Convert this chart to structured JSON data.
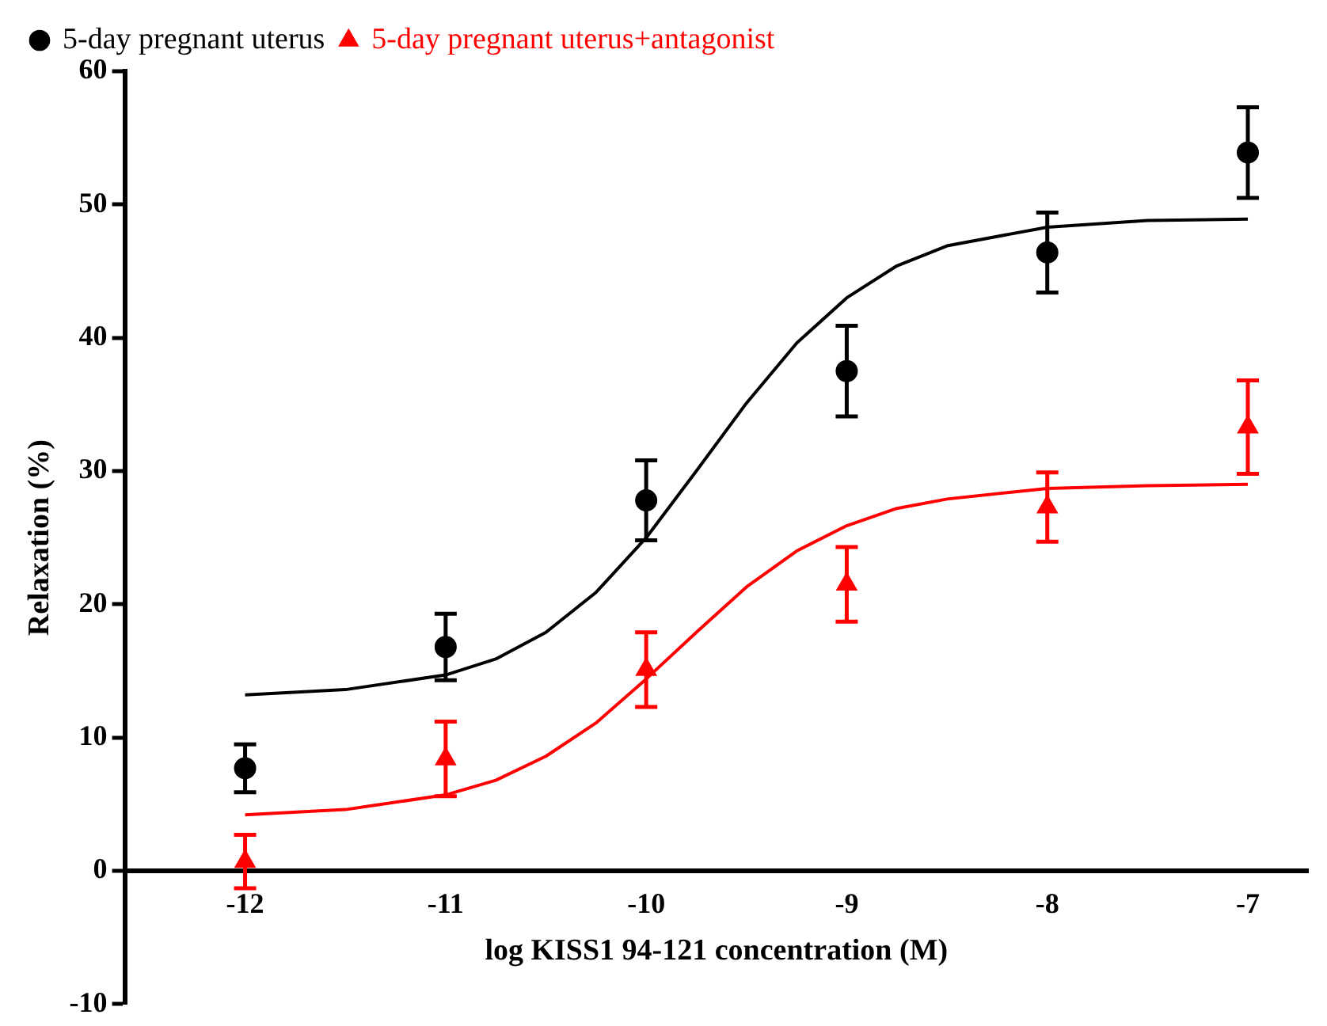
{
  "chart_data": {
    "type": "scatter",
    "xlabel": "log KISS1 94-121 concentration (M)",
    "ylabel": "Relaxation (%)",
    "x": [
      -12,
      -11,
      -10,
      -9,
      -8,
      -7
    ],
    "xlim": [
      -12.6,
      -6.7
    ],
    "xticks": [
      -12,
      -11,
      -10,
      -9,
      -8,
      -7
    ],
    "ylim": [
      -10,
      60
    ],
    "yticks": [
      -10,
      0,
      10,
      20,
      30,
      40,
      50,
      60
    ],
    "grid": false,
    "legend": "top left",
    "series": [
      {
        "name": "5-day pregnant uterus",
        "marker": "circle",
        "color": "#000000",
        "values": [
          7.7,
          16.8,
          27.8,
          37.5,
          46.4,
          53.9
        ],
        "errors": [
          1.8,
          2.5,
          3,
          3.4,
          3,
          3.4
        ]
      },
      {
        "name": "5-day pregnant uterus+antagonist",
        "marker": "triangle",
        "color": "#ff0000",
        "values": [
          0.7,
          8.4,
          15.1,
          21.5,
          27.3,
          33.3
        ],
        "errors": [
          2,
          2.8,
          2.8,
          2.8,
          2.6,
          3.5
        ]
      },
      {
        "type": "line",
        "marker": "none",
        "color": "#000000",
        "x": [
          -12,
          -11.5,
          -11,
          -10.75,
          -10.5,
          -10.25,
          -10,
          -9.75,
          -9.5,
          -9.25,
          -9,
          -8.75,
          -8.5,
          -8,
          -7.5,
          -7
        ],
        "values": [
          13.2,
          13.6,
          14.7,
          15.9,
          17.9,
          20.9,
          25,
          30,
          35.1,
          39.6,
          43,
          45.4,
          46.9,
          48.3,
          48.8,
          48.9
        ]
      },
      {
        "type": "line",
        "marker": "none",
        "color": "#ff0000",
        "x": [
          -12,
          -11.5,
          -11,
          -10.75,
          -10.5,
          -10.25,
          -10,
          -9.75,
          -9.5,
          -9.25,
          -9,
          -8.75,
          -8.5,
          -8,
          -7.5,
          -7
        ],
        "values": [
          4.2,
          4.6,
          5.7,
          6.8,
          8.6,
          11.1,
          14.4,
          17.9,
          21.3,
          24,
          25.9,
          27.2,
          27.9,
          28.7,
          28.9,
          29
        ]
      }
    ]
  }
}
